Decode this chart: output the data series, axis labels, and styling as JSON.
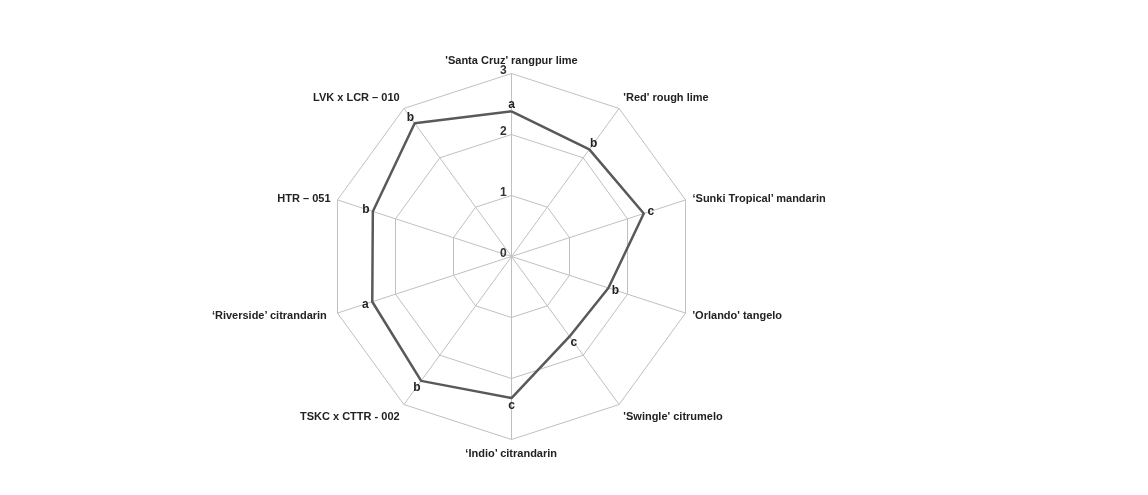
{
  "chart_data": {
    "type": "radar",
    "categories": [
      "'Santa Cruz' rangpur lime",
      "'Red' rough lime",
      "‘Sunki Tropical’ mandarin",
      "'Orlando' tangelo",
      "'Swingle' citrumelo",
      "‘Indio’ citrandarin",
      "TSKC x CTTR - 002",
      "‘Riverside’  citrandarin",
      "HTR – 051",
      "LVK x LCR – 010"
    ],
    "series": [
      {
        "color": "#595959",
        "values": [
          2.38,
          2.17,
          2.28,
          1.67,
          1.62,
          2.32,
          2.52,
          2.4,
          2.39,
          2.7
        ]
      }
    ],
    "ylim": [
      0,
      3
    ],
    "yticks": [
      0,
      1,
      2,
      3
    ],
    "grid": true,
    "marker": "none",
    "line_style": "solid",
    "annotations": [
      "a",
      "b",
      "c",
      "b",
      "c",
      "c",
      "b",
      "a",
      "b",
      "b"
    ]
  }
}
